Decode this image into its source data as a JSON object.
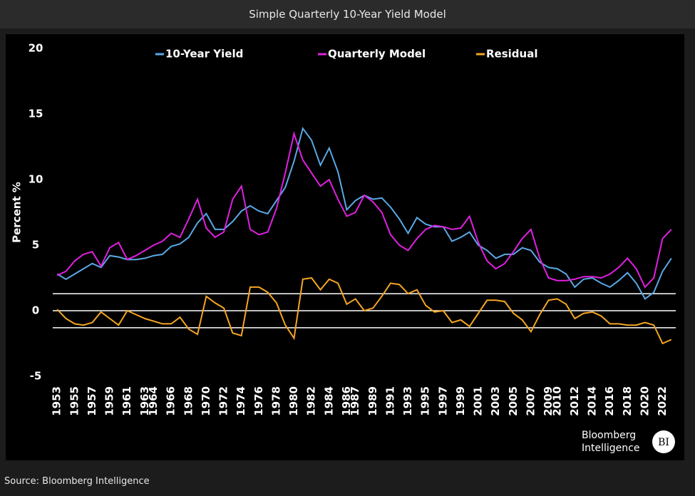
{
  "chart_data": {
    "type": "line",
    "title": "Simple Quarterly 10-Year Yield Model",
    "y_label": "Percent %",
    "x": [
      1953,
      1954,
      1955,
      1956,
      1957,
      1958,
      1959,
      1960,
      1961,
      1962,
      1963,
      1964,
      1965,
      1966,
      1967,
      1968,
      1969,
      1970,
      1971,
      1972,
      1973,
      1974,
      1975,
      1976,
      1977,
      1978,
      1979,
      1980,
      1981,
      1982,
      1983,
      1984,
      1985,
      1986,
      1987,
      1988,
      1989,
      1990,
      1991,
      1992,
      1993,
      1994,
      1995,
      1996,
      1997,
      1998,
      1999,
      2000,
      2001,
      2002,
      2003,
      2004,
      2005,
      2006,
      2007,
      2008,
      2009,
      2010,
      2011,
      2012,
      2013,
      2014,
      2015,
      2016,
      2017,
      2018,
      2019,
      2020,
      2021,
      2022,
      2023
    ],
    "series": [
      {
        "name": "10-Year Yield",
        "color": "#5aa9e6",
        "values": [
          2.8,
          2.4,
          2.8,
          3.2,
          3.6,
          3.3,
          4.2,
          4.1,
          3.9,
          3.9,
          4.0,
          4.2,
          4.3,
          4.9,
          5.1,
          5.6,
          6.7,
          7.4,
          6.2,
          6.2,
          6.8,
          7.6,
          8.0,
          7.6,
          7.4,
          8.4,
          9.4,
          11.4,
          13.9,
          13.0,
          11.1,
          12.4,
          10.6,
          7.7,
          8.4,
          8.8,
          8.5,
          8.6,
          7.9,
          7.0,
          5.9,
          7.1,
          6.6,
          6.4,
          6.4,
          5.3,
          5.6,
          6.0,
          5.0,
          4.6,
          4.0,
          4.3,
          4.3,
          4.8,
          4.6,
          3.7,
          3.3,
          3.2,
          2.8,
          1.8,
          2.4,
          2.5,
          2.1,
          1.8,
          2.3,
          2.9,
          2.1,
          0.9,
          1.4,
          3.0,
          4.0
        ]
      },
      {
        "name": "Quarterly Model",
        "color": "#e020e0",
        "values": [
          2.7,
          3.0,
          3.8,
          4.3,
          4.5,
          3.4,
          4.8,
          5.2,
          3.9,
          4.2,
          4.6,
          5.0,
          5.3,
          5.9,
          5.6,
          7.0,
          8.5,
          6.3,
          5.6,
          6.0,
          8.5,
          9.5,
          6.2,
          5.8,
          6.0,
          7.8,
          10.5,
          13.5,
          11.5,
          10.5,
          9.5,
          10.0,
          8.5,
          7.2,
          7.5,
          8.8,
          8.3,
          7.5,
          5.8,
          5.0,
          4.6,
          5.5,
          6.2,
          6.5,
          6.4,
          6.2,
          6.3,
          7.2,
          5.2,
          3.8,
          3.2,
          3.6,
          4.5,
          5.5,
          6.2,
          4.0,
          2.5,
          2.3,
          2.3,
          2.4,
          2.6,
          2.6,
          2.5,
          2.8,
          3.3,
          4.0,
          3.2,
          1.8,
          2.5,
          5.5,
          6.2
        ]
      },
      {
        "name": "Residual",
        "color": "#f5a623",
        "values": [
          0.1,
          -0.6,
          -1.0,
          -1.1,
          -0.9,
          -0.1,
          -0.6,
          -1.1,
          0.0,
          -0.3,
          -0.6,
          -0.8,
          -1.0,
          -1.0,
          -0.5,
          -1.4,
          -1.8,
          1.1,
          0.6,
          0.2,
          -1.7,
          -1.9,
          1.8,
          1.8,
          1.4,
          0.6,
          -1.1,
          -2.1,
          2.4,
          2.5,
          1.6,
          2.4,
          2.1,
          0.5,
          0.9,
          0.0,
          0.2,
          1.1,
          2.1,
          2.0,
          1.3,
          1.6,
          0.4,
          -0.1,
          0.0,
          -0.9,
          -0.7,
          -1.2,
          -0.2,
          0.8,
          0.8,
          0.7,
          -0.2,
          -0.7,
          -1.6,
          -0.3,
          0.8,
          0.9,
          0.5,
          -0.6,
          -0.2,
          -0.1,
          -0.4,
          -1.0,
          -1.0,
          -1.1,
          -1.1,
          -0.9,
          -1.1,
          -2.5,
          -2.2
        ]
      }
    ],
    "reference_lines": [
      1.3,
      0,
      -1.3
    ],
    "xlim": [
      1952.5,
      2023.5
    ],
    "xticks": [
      1953,
      1955,
      1957,
      1959,
      1961,
      1963,
      1964,
      1966,
      1968,
      1970,
      1972,
      1974,
      1976,
      1978,
      1980,
      1982,
      1984,
      1986,
      1987,
      1989,
      1991,
      1993,
      1995,
      1997,
      1999,
      2001,
      2003,
      2005,
      2007,
      2009,
      2010,
      2012,
      2014,
      2016,
      2018,
      2020,
      2022
    ],
    "ylim": [
      -5,
      20
    ],
    "yticks": [
      -5,
      0,
      5,
      10,
      15,
      20
    ],
    "legend": "top"
  },
  "source": "Source: Bloomberg Intelligence",
  "logo": {
    "line1": "Bloomberg",
    "line2": "Intelligence",
    "badge": "BI"
  }
}
